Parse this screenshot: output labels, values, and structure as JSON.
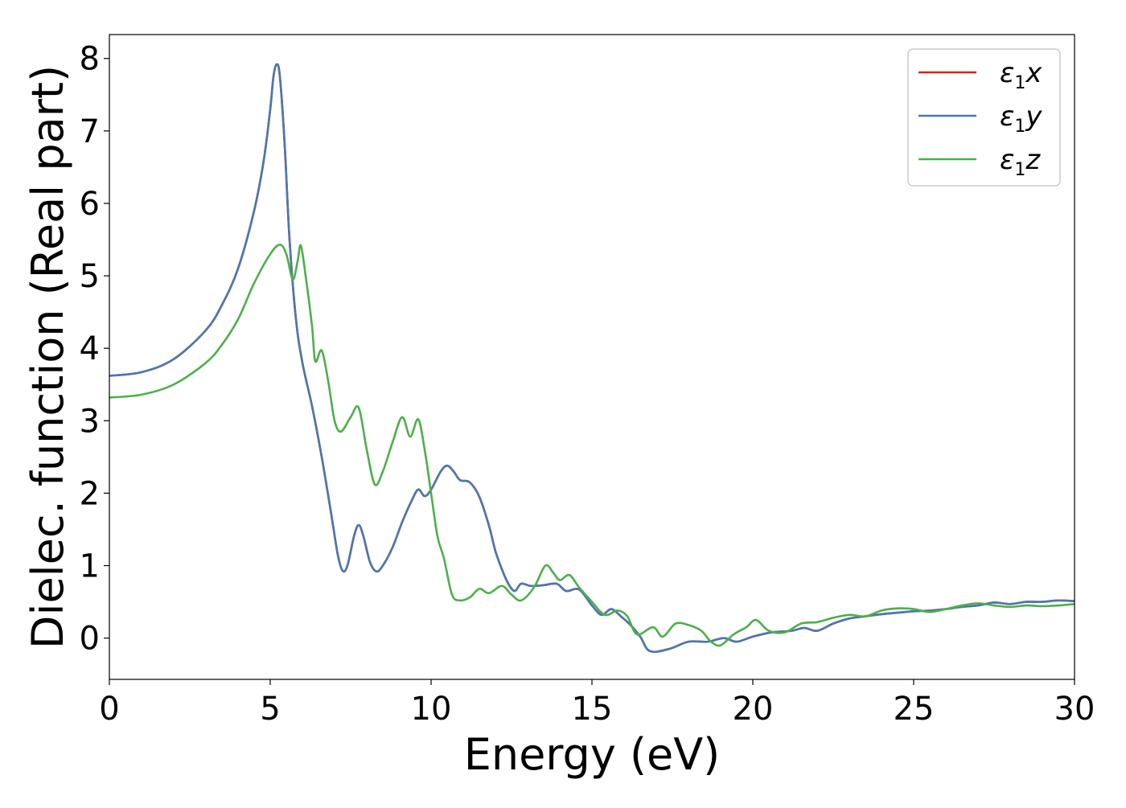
{
  "chart_data": {
    "type": "line",
    "title": "",
    "xlabel": "Energy (eV)",
    "ylabel": "Dielec. function (Real part)",
    "xlim": [
      0,
      30
    ],
    "ylim": [
      -0.57,
      8.33
    ],
    "x_ticks": [
      0,
      5,
      10,
      15,
      20,
      25,
      30
    ],
    "y_ticks": [
      0,
      1,
      2,
      3,
      4,
      5,
      6,
      7,
      8
    ],
    "grid": false,
    "legend_position": "top-right",
    "series": [
      {
        "name": "ε1x",
        "legend_main": "ε",
        "legend_sub": "1",
        "legend_tail": "x",
        "color": "#e41a1c",
        "points": [
          [
            0,
            3.62
          ],
          [
            1,
            3.67
          ],
          [
            2,
            3.85
          ],
          [
            3,
            4.25
          ],
          [
            3.5,
            4.6
          ],
          [
            4,
            5.1
          ],
          [
            4.5,
            5.9
          ],
          [
            4.8,
            6.6
          ],
          [
            5.0,
            7.3
          ],
          [
            5.1,
            7.75
          ],
          [
            5.2,
            7.92
          ],
          [
            5.3,
            7.75
          ],
          [
            5.45,
            6.8
          ],
          [
            5.6,
            5.5
          ],
          [
            5.8,
            4.4
          ],
          [
            6.0,
            3.8
          ],
          [
            6.3,
            3.2
          ],
          [
            6.6,
            2.5
          ],
          [
            6.9,
            1.7
          ],
          [
            7.1,
            1.15
          ],
          [
            7.25,
            0.93
          ],
          [
            7.4,
            1.0
          ],
          [
            7.6,
            1.4
          ],
          [
            7.75,
            1.56
          ],
          [
            7.9,
            1.4
          ],
          [
            8.1,
            1.05
          ],
          [
            8.3,
            0.92
          ],
          [
            8.5,
            1.0
          ],
          [
            8.8,
            1.25
          ],
          [
            9.1,
            1.6
          ],
          [
            9.4,
            1.9
          ],
          [
            9.6,
            2.05
          ],
          [
            9.8,
            1.96
          ],
          [
            10.0,
            2.05
          ],
          [
            10.3,
            2.3
          ],
          [
            10.5,
            2.38
          ],
          [
            10.7,
            2.3
          ],
          [
            10.9,
            2.18
          ],
          [
            11.2,
            2.15
          ],
          [
            11.5,
            1.95
          ],
          [
            11.8,
            1.55
          ],
          [
            12.0,
            1.2
          ],
          [
            12.2,
            0.95
          ],
          [
            12.4,
            0.75
          ],
          [
            12.6,
            0.65
          ],
          [
            12.8,
            0.75
          ],
          [
            13.1,
            0.72
          ],
          [
            13.5,
            0.73
          ],
          [
            13.9,
            0.75
          ],
          [
            14.2,
            0.65
          ],
          [
            14.6,
            0.67
          ],
          [
            15.0,
            0.45
          ],
          [
            15.3,
            0.32
          ],
          [
            15.6,
            0.4
          ],
          [
            15.9,
            0.3
          ],
          [
            16.2,
            0.18
          ],
          [
            16.5,
            0.02
          ],
          [
            16.8,
            -0.18
          ],
          [
            17.4,
            -0.15
          ],
          [
            18.0,
            -0.05
          ],
          [
            18.6,
            -0.05
          ],
          [
            19.1,
            0.0
          ],
          [
            19.5,
            -0.05
          ],
          [
            20.0,
            0.02
          ],
          [
            20.6,
            0.08
          ],
          [
            21.2,
            0.1
          ],
          [
            21.6,
            0.14
          ],
          [
            22.0,
            0.1
          ],
          [
            22.5,
            0.2
          ],
          [
            23.0,
            0.27
          ],
          [
            23.5,
            0.3
          ],
          [
            24.0,
            0.33
          ],
          [
            24.5,
            0.35
          ],
          [
            25.0,
            0.37
          ],
          [
            25.5,
            0.38
          ],
          [
            26.0,
            0.4
          ],
          [
            26.5,
            0.43
          ],
          [
            27.0,
            0.45
          ],
          [
            27.5,
            0.49
          ],
          [
            28.0,
            0.47
          ],
          [
            28.5,
            0.5
          ],
          [
            29.0,
            0.5
          ],
          [
            29.5,
            0.52
          ],
          [
            30,
            0.51
          ]
        ]
      },
      {
        "name": "ε1y",
        "legend_main": "ε",
        "legend_sub": "1",
        "legend_tail": "y",
        "color": "#4a78b0",
        "points": [
          [
            0,
            3.62
          ],
          [
            1,
            3.67
          ],
          [
            2,
            3.85
          ],
          [
            3,
            4.25
          ],
          [
            3.5,
            4.6
          ],
          [
            4,
            5.1
          ],
          [
            4.5,
            5.9
          ],
          [
            4.8,
            6.6
          ],
          [
            5.0,
            7.3
          ],
          [
            5.1,
            7.75
          ],
          [
            5.2,
            7.92
          ],
          [
            5.3,
            7.75
          ],
          [
            5.45,
            6.8
          ],
          [
            5.6,
            5.5
          ],
          [
            5.8,
            4.4
          ],
          [
            6.0,
            3.8
          ],
          [
            6.3,
            3.2
          ],
          [
            6.6,
            2.5
          ],
          [
            6.9,
            1.7
          ],
          [
            7.1,
            1.15
          ],
          [
            7.25,
            0.93
          ],
          [
            7.4,
            1.0
          ],
          [
            7.6,
            1.4
          ],
          [
            7.75,
            1.56
          ],
          [
            7.9,
            1.4
          ],
          [
            8.1,
            1.05
          ],
          [
            8.3,
            0.92
          ],
          [
            8.5,
            1.0
          ],
          [
            8.8,
            1.25
          ],
          [
            9.1,
            1.6
          ],
          [
            9.4,
            1.9
          ],
          [
            9.6,
            2.05
          ],
          [
            9.8,
            1.96
          ],
          [
            10.0,
            2.05
          ],
          [
            10.3,
            2.3
          ],
          [
            10.5,
            2.38
          ],
          [
            10.7,
            2.3
          ],
          [
            10.9,
            2.18
          ],
          [
            11.2,
            2.15
          ],
          [
            11.5,
            1.95
          ],
          [
            11.8,
            1.55
          ],
          [
            12.0,
            1.2
          ],
          [
            12.2,
            0.95
          ],
          [
            12.4,
            0.75
          ],
          [
            12.6,
            0.65
          ],
          [
            12.8,
            0.75
          ],
          [
            13.1,
            0.72
          ],
          [
            13.5,
            0.73
          ],
          [
            13.9,
            0.75
          ],
          [
            14.2,
            0.65
          ],
          [
            14.6,
            0.67
          ],
          [
            15.0,
            0.45
          ],
          [
            15.3,
            0.32
          ],
          [
            15.6,
            0.4
          ],
          [
            15.9,
            0.3
          ],
          [
            16.2,
            0.18
          ],
          [
            16.5,
            0.02
          ],
          [
            16.8,
            -0.18
          ],
          [
            17.4,
            -0.15
          ],
          [
            18.0,
            -0.05
          ],
          [
            18.6,
            -0.05
          ],
          [
            19.1,
            0.0
          ],
          [
            19.5,
            -0.05
          ],
          [
            20.0,
            0.02
          ],
          [
            20.6,
            0.08
          ],
          [
            21.2,
            0.1
          ],
          [
            21.6,
            0.14
          ],
          [
            22.0,
            0.1
          ],
          [
            22.5,
            0.2
          ],
          [
            23.0,
            0.27
          ],
          [
            23.5,
            0.3
          ],
          [
            24.0,
            0.33
          ],
          [
            24.5,
            0.35
          ],
          [
            25.0,
            0.37
          ],
          [
            25.5,
            0.38
          ],
          [
            26.0,
            0.4
          ],
          [
            26.5,
            0.43
          ],
          [
            27.0,
            0.45
          ],
          [
            27.5,
            0.49
          ],
          [
            28.0,
            0.47
          ],
          [
            28.5,
            0.5
          ],
          [
            29.0,
            0.5
          ],
          [
            29.5,
            0.52
          ],
          [
            30,
            0.51
          ]
        ]
      },
      {
        "name": "ε1z",
        "legend_main": "ε",
        "legend_sub": "1",
        "legend_tail": "z",
        "color": "#4daf4a",
        "points": [
          [
            0,
            3.32
          ],
          [
            1,
            3.36
          ],
          [
            2,
            3.5
          ],
          [
            3,
            3.8
          ],
          [
            3.5,
            4.05
          ],
          [
            4,
            4.4
          ],
          [
            4.5,
            4.9
          ],
          [
            5.0,
            5.3
          ],
          [
            5.3,
            5.43
          ],
          [
            5.5,
            5.3
          ],
          [
            5.7,
            4.95
          ],
          [
            5.85,
            5.2
          ],
          [
            5.95,
            5.42
          ],
          [
            6.1,
            5.0
          ],
          [
            6.3,
            4.3
          ],
          [
            6.4,
            3.82
          ],
          [
            6.6,
            3.97
          ],
          [
            6.8,
            3.55
          ],
          [
            7.0,
            3.0
          ],
          [
            7.2,
            2.85
          ],
          [
            7.5,
            3.05
          ],
          [
            7.75,
            3.18
          ],
          [
            8.0,
            2.6
          ],
          [
            8.25,
            2.12
          ],
          [
            8.5,
            2.3
          ],
          [
            8.8,
            2.7
          ],
          [
            9.1,
            3.05
          ],
          [
            9.35,
            2.78
          ],
          [
            9.6,
            3.02
          ],
          [
            9.8,
            2.6
          ],
          [
            10.0,
            2.0
          ],
          [
            10.2,
            1.4
          ],
          [
            10.4,
            1.1
          ],
          [
            10.65,
            0.6
          ],
          [
            10.9,
            0.52
          ],
          [
            11.2,
            0.56
          ],
          [
            11.5,
            0.68
          ],
          [
            11.8,
            0.62
          ],
          [
            12.2,
            0.72
          ],
          [
            12.5,
            0.6
          ],
          [
            12.8,
            0.52
          ],
          [
            13.2,
            0.7
          ],
          [
            13.55,
            1.0
          ],
          [
            13.8,
            0.9
          ],
          [
            14.0,
            0.8
          ],
          [
            14.3,
            0.87
          ],
          [
            14.6,
            0.7
          ],
          [
            15.0,
            0.5
          ],
          [
            15.4,
            0.32
          ],
          [
            15.8,
            0.38
          ],
          [
            16.1,
            0.3
          ],
          [
            16.4,
            0.05
          ],
          [
            16.9,
            0.15
          ],
          [
            17.2,
            0.02
          ],
          [
            17.6,
            0.2
          ],
          [
            18.0,
            0.18
          ],
          [
            18.4,
            0.1
          ],
          [
            18.7,
            -0.05
          ],
          [
            19.0,
            -0.1
          ],
          [
            19.4,
            0.05
          ],
          [
            19.8,
            0.15
          ],
          [
            20.1,
            0.25
          ],
          [
            20.5,
            0.1
          ],
          [
            21.0,
            0.08
          ],
          [
            21.5,
            0.2
          ],
          [
            22.0,
            0.22
          ],
          [
            22.5,
            0.28
          ],
          [
            23.0,
            0.32
          ],
          [
            23.5,
            0.3
          ],
          [
            24.0,
            0.38
          ],
          [
            24.5,
            0.41
          ],
          [
            25.0,
            0.4
          ],
          [
            25.5,
            0.36
          ],
          [
            26.0,
            0.4
          ],
          [
            26.5,
            0.45
          ],
          [
            27.0,
            0.48
          ],
          [
            27.5,
            0.45
          ],
          [
            28.0,
            0.43
          ],
          [
            28.5,
            0.45
          ],
          [
            29.0,
            0.44
          ],
          [
            29.5,
            0.45
          ],
          [
            30,
            0.47
          ]
        ]
      }
    ]
  }
}
